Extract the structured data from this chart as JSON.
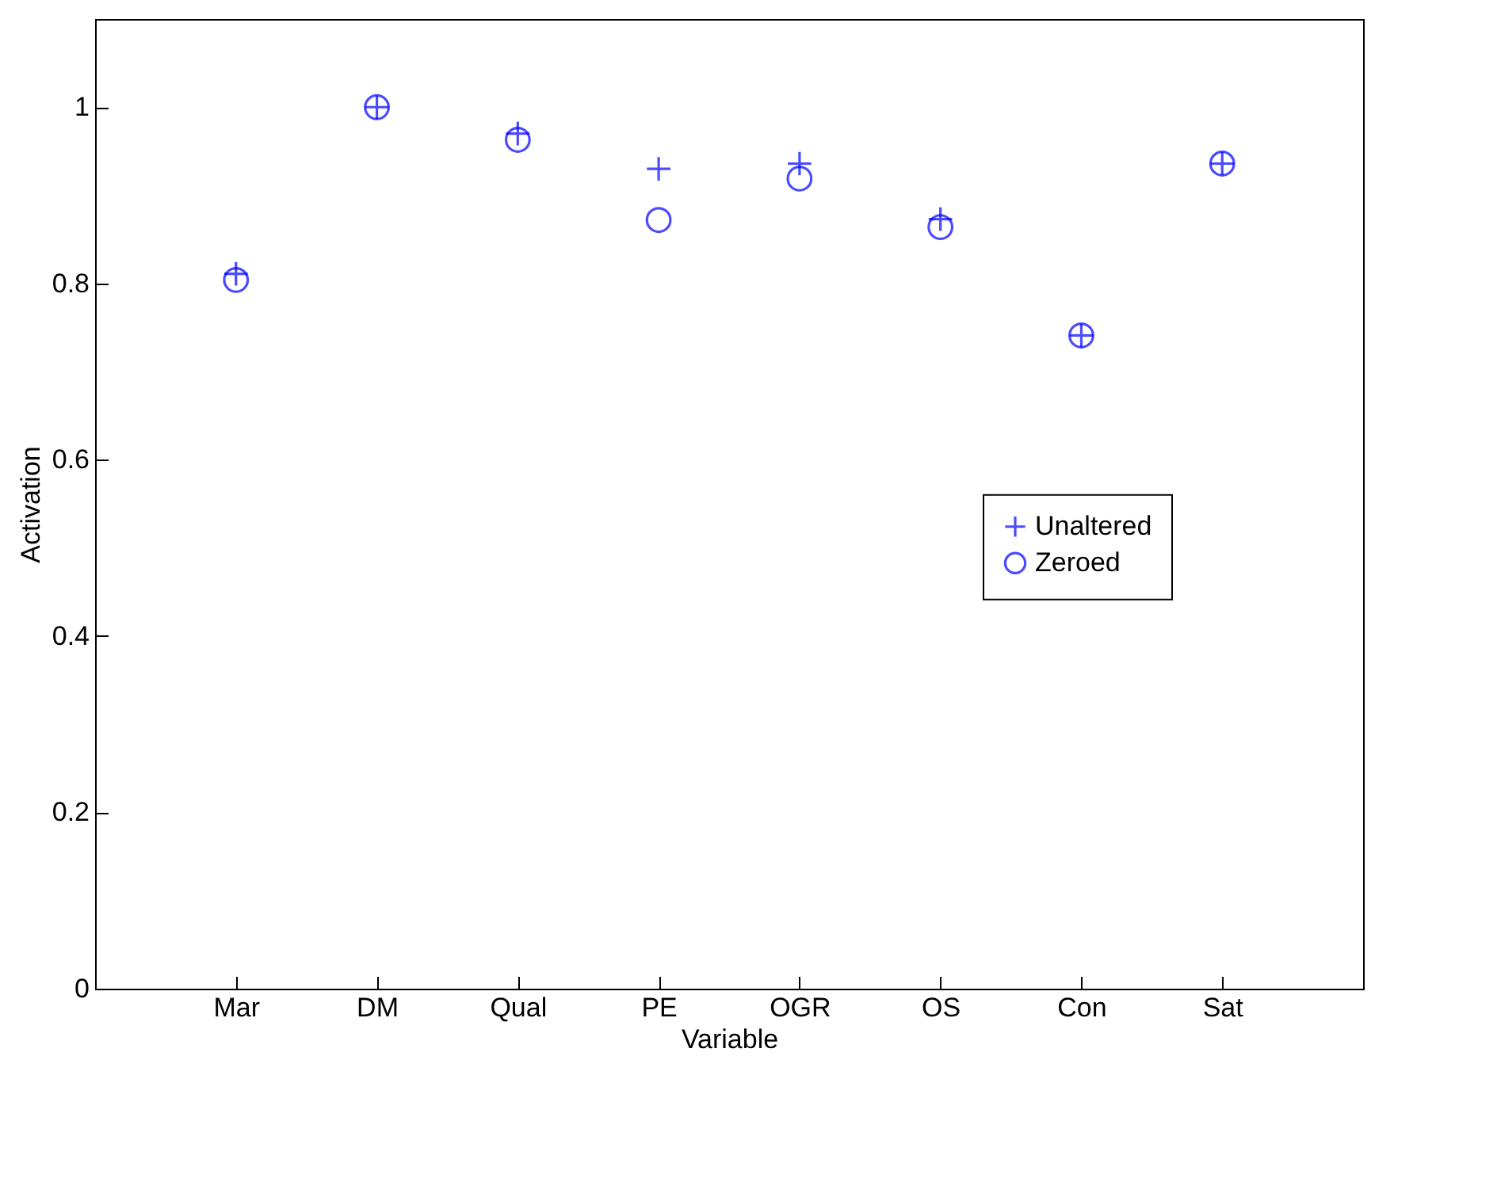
{
  "chart_data": {
    "type": "scatter",
    "xlabel": "Variable",
    "ylabel": "Activation",
    "categories": [
      "Mar",
      "DM",
      "Qual",
      "PE",
      "OGR",
      "OS",
      "Con",
      "Sat"
    ],
    "series": [
      {
        "name": "Unaltered",
        "color": "#0000ff",
        "marker": "cross",
        "values": [
          0.811,
          1.0,
          0.97,
          0.93,
          0.936,
          0.873,
          0.741,
          0.936
        ]
      },
      {
        "name": "Zeroed",
        "color": "#0000ff",
        "marker": "circle",
        "values": [
          0.804,
          1.0,
          0.963,
          0.872,
          0.919,
          0.864,
          0.741,
          0.936
        ]
      }
    ],
    "ylim": [
      0,
      1.1
    ],
    "yticks": [
      0,
      0.2,
      0.4,
      0.6,
      0.8,
      1
    ],
    "grid": false,
    "legend": "right"
  }
}
